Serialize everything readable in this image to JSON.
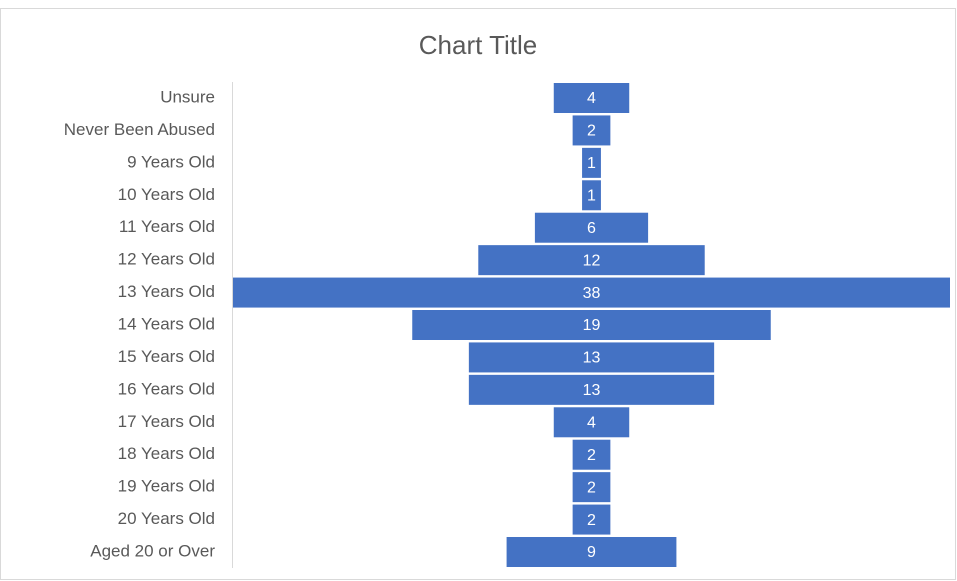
{
  "chart_data": {
    "type": "funnel",
    "title": "Chart Title",
    "categories": [
      "Unsure",
      "Never Been Abused",
      "9 Years Old",
      "10 Years Old",
      "11 Years Old",
      "12 Years Old",
      "13 Years Old",
      "14 Years Old",
      "15 Years Old",
      "16 Years Old",
      "17 Years Old",
      "18 Years Old",
      "19 Years Old",
      "20 Years Old",
      "Aged 20 or Over"
    ],
    "values": [
      4,
      2,
      1,
      1,
      6,
      12,
      38,
      19,
      13,
      13,
      4,
      2,
      2,
      2,
      9
    ],
    "color": "#4472c4"
  }
}
